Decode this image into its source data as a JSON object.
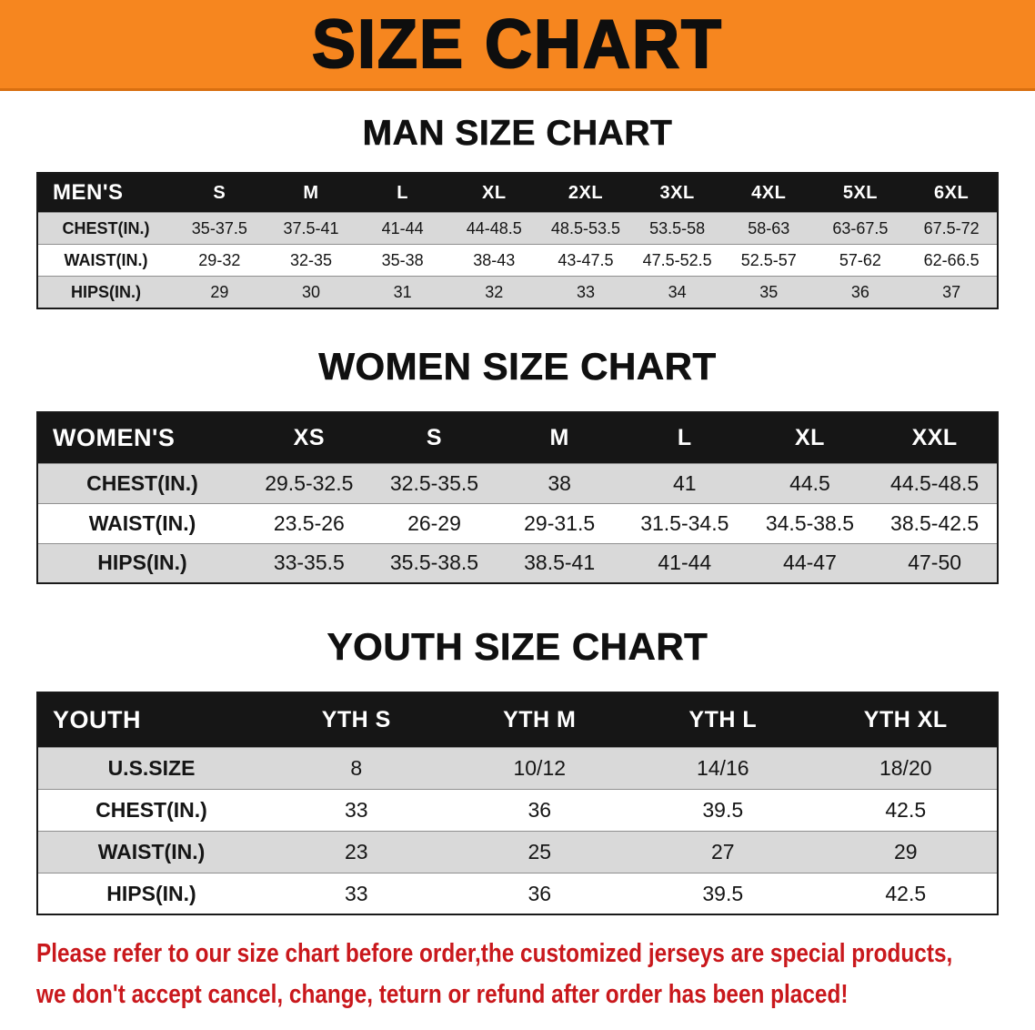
{
  "banner": {
    "title": "SIZE CHART"
  },
  "colors": {
    "banner_bg": "#f6861f",
    "header_bg": "#161616",
    "band_gray": "#d9d9d9",
    "disclaimer_red": "#c9181c"
  },
  "sections": [
    {
      "id": "men",
      "heading": "MAN SIZE CHART",
      "table": {
        "header": [
          "MEN'S",
          "S",
          "M",
          "L",
          "XL",
          "2XL",
          "3XL",
          "4XL",
          "5XL",
          "6XL"
        ],
        "rows": [
          {
            "label": "CHEST(IN.)",
            "values": [
              "35-37.5",
              "37.5-41",
              "41-44",
              "44-48.5",
              "48.5-53.5",
              "53.5-58",
              "58-63",
              "63-67.5",
              "67.5-72"
            ]
          },
          {
            "label": "WAIST(IN.)",
            "values": [
              "29-32",
              "32-35",
              "35-38",
              "38-43",
              "43-47.5",
              "47.5-52.5",
              "52.5-57",
              "57-62",
              "62-66.5"
            ]
          },
          {
            "label": "HIPS(IN.)",
            "values": [
              "29",
              "30",
              "31",
              "32",
              "33",
              "34",
              "35",
              "36",
              "37"
            ]
          }
        ]
      }
    },
    {
      "id": "women",
      "heading": "WOMEN SIZE CHART",
      "table": {
        "header": [
          "WOMEN'S",
          "XS",
          "S",
          "M",
          "L",
          "XL",
          "XXL"
        ],
        "rows": [
          {
            "label": "CHEST(IN.)",
            "values": [
              "29.5-32.5",
              "32.5-35.5",
              "38",
              "41",
              "44.5",
              "44.5-48.5"
            ]
          },
          {
            "label": "WAIST(IN.)",
            "values": [
              "23.5-26",
              "26-29",
              "29-31.5",
              "31.5-34.5",
              "34.5-38.5",
              "38.5-42.5"
            ]
          },
          {
            "label": "HIPS(IN.)",
            "values": [
              "33-35.5",
              "35.5-38.5",
              "38.5-41",
              "41-44",
              "44-47",
              "47-50"
            ]
          }
        ]
      }
    },
    {
      "id": "youth",
      "heading": "YOUTH SIZE CHART",
      "table": {
        "header": [
          "YOUTH",
          "YTH S",
          "YTH M",
          "YTH L",
          "YTH XL"
        ],
        "rows": [
          {
            "label": "U.S.SIZE",
            "values": [
              "8",
              "10/12",
              "14/16",
              "18/20"
            ]
          },
          {
            "label": "CHEST(IN.)",
            "values": [
              "33",
              "36",
              "39.5",
              "42.5"
            ]
          },
          {
            "label": "WAIST(IN.)",
            "values": [
              "23",
              "25",
              "27",
              "29"
            ]
          },
          {
            "label": "HIPS(IN.)",
            "values": [
              "33",
              "36",
              "39.5",
              "42.5"
            ]
          }
        ]
      }
    }
  ],
  "disclaimer": {
    "line1": "Please refer to our size chart before order,the customized jerseys are special products,",
    "line2": "we don't accept cancel, change, teturn or refund after order has been placed!"
  }
}
